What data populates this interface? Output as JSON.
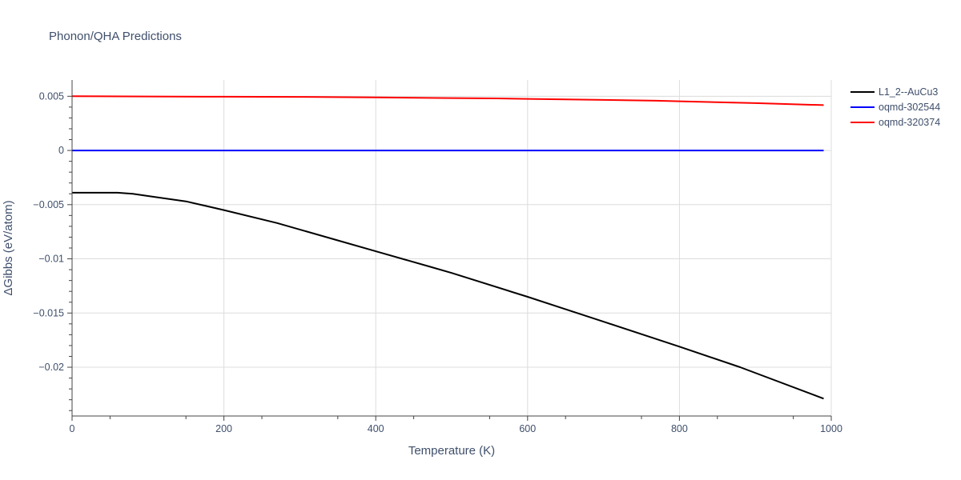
{
  "chart_data": {
    "type": "line",
    "title": "Phonon/QHA Predictions",
    "xlabel": "Temperature (K)",
    "ylabel": "ΔGibbs (eV/atom)",
    "xlim": [
      0,
      1000
    ],
    "ylim": [
      -0.0245,
      0.0065
    ],
    "x_ticks": [
      0,
      200,
      400,
      600,
      800,
      1000
    ],
    "x_tick_labels": [
      "0",
      "200",
      "400",
      "600",
      "800",
      "1000"
    ],
    "y_ticks": [
      0.005,
      0,
      -0.005,
      -0.01,
      -0.015,
      -0.02
    ],
    "y_tick_labels": [
      "0.005",
      "0",
      "−0.005",
      "−0.01",
      "−0.015",
      "−0.02"
    ],
    "grid": true,
    "legend_position": "top-right",
    "series": [
      {
        "name": "L1_2--AuCu3",
        "color": "#000000",
        "x": [
          0,
          20,
          40,
          60,
          80,
          100,
          150,
          200,
          270,
          350,
          400,
          470,
          500,
          600,
          700,
          800,
          880,
          990
        ],
        "y": [
          -0.0039,
          -0.0039,
          -0.0039,
          -0.0039,
          -0.004,
          -0.0042,
          -0.0047,
          -0.0055,
          -0.0067,
          -0.0083,
          -0.0093,
          -0.0107,
          -0.0113,
          -0.0135,
          -0.0158,
          -0.0181,
          -0.02,
          -0.0229
        ]
      },
      {
        "name": "oqmd-302544",
        "color": "#0000ff",
        "x": [
          0,
          200,
          400,
          600,
          800,
          990
        ],
        "y": [
          0,
          0,
          0,
          0,
          0,
          0
        ]
      },
      {
        "name": "oqmd-320374",
        "color": "#ff0000",
        "x": [
          0,
          100,
          200,
          300,
          400,
          500,
          560,
          600,
          700,
          770,
          800,
          900,
          990
        ],
        "y": [
          0.005,
          0.00498,
          0.00496,
          0.00494,
          0.00489,
          0.00483,
          0.0048,
          0.00476,
          0.00466,
          0.00459,
          0.00454,
          0.00437,
          0.00418
        ]
      }
    ]
  }
}
